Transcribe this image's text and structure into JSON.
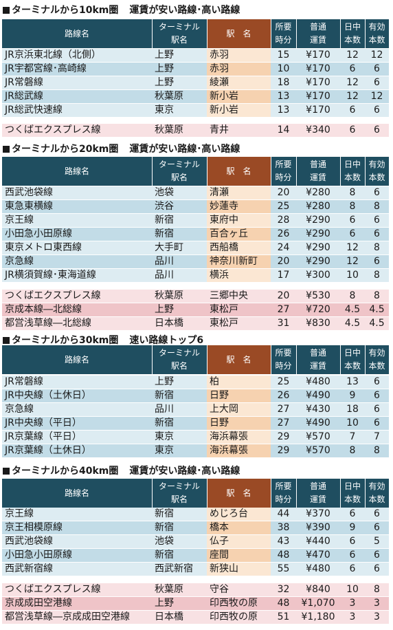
{
  "header_labels": {
    "route": "路線名",
    "terminal_line1": "ターミナル",
    "terminal_line2": "駅名",
    "station": "駅　名",
    "minutes_line1": "所要",
    "minutes_line2": "時分",
    "fare_line1": "普通",
    "fare_line2": "運賃",
    "daytime_line1": "日中",
    "daytime_line2": "本数",
    "effective_line1": "有効",
    "effective_line2": "本数"
  },
  "colors": {
    "header_bg": "#1f4e60",
    "header_station_bg": "#9a4a25",
    "cheap_row_light": "#ddecf2",
    "cheap_row_dark": "#c2dce7",
    "cheap_station_light": "#fbe7d3",
    "cheap_station_dark": "#f6d2b0",
    "expensive_row_light": "#f8e1e3",
    "expensive_row_dark": "#efc4c8"
  },
  "sections": [
    {
      "title": "ターミナルから10km圏",
      "subtitle": "運賃が安い路線･高い路線",
      "groups": [
        {
          "kind": "cheap",
          "rows": [
            {
              "route": "JR京浜東北線（北側）",
              "terminal": "上野",
              "station": "赤羽",
              "minutes": "15",
              "fare": "¥170",
              "daytime": "12",
              "effective": "12"
            },
            {
              "route": "JR宇都宮線･高崎線",
              "terminal": "上野",
              "station": "赤羽",
              "minutes": "10",
              "fare": "¥170",
              "daytime": "6",
              "effective": "6"
            },
            {
              "route": "JR常磐線",
              "terminal": "上野",
              "station": "綾瀬",
              "minutes": "18",
              "fare": "¥170",
              "daytime": "12",
              "effective": "6"
            },
            {
              "route": "JR総武線",
              "terminal": "秋葉原",
              "station": "新小岩",
              "minutes": "13",
              "fare": "¥170",
              "daytime": "12",
              "effective": "12"
            },
            {
              "route": "JR総武快速線",
              "terminal": "東京",
              "station": "新小岩",
              "minutes": "13",
              "fare": "¥170",
              "daytime": "6",
              "effective": "6"
            }
          ]
        },
        {
          "kind": "expensive",
          "rows": [
            {
              "route": "つくばエクスプレス線",
              "terminal": "秋葉原",
              "station": "青井",
              "minutes": "14",
              "fare": "¥340",
              "daytime": "6",
              "effective": "6"
            }
          ]
        }
      ]
    },
    {
      "title": "ターミナルから20km圏",
      "subtitle": "運賃が安い路線･高い路線",
      "groups": [
        {
          "kind": "cheap",
          "rows": [
            {
              "route": "西武池袋線",
              "terminal": "池袋",
              "station": "清瀬",
              "minutes": "20",
              "fare": "¥280",
              "daytime": "8",
              "effective": "6"
            },
            {
              "route": "東急東横線",
              "terminal": "渋谷",
              "station": "妙蓮寺",
              "minutes": "25",
              "fare": "¥280",
              "daytime": "8",
              "effective": "8"
            },
            {
              "route": "京王線",
              "terminal": "新宿",
              "station": "東府中",
              "minutes": "28",
              "fare": "¥290",
              "daytime": "6",
              "effective": "6"
            },
            {
              "route": "小田急小田原線",
              "terminal": "新宿",
              "station": "百合ヶ丘",
              "minutes": "26",
              "fare": "¥290",
              "daytime": "6",
              "effective": "6"
            },
            {
              "route": "東京メトロ東西線",
              "terminal": "大手町",
              "station": "西船橋",
              "minutes": "24",
              "fare": "¥290",
              "daytime": "12",
              "effective": "8"
            },
            {
              "route": "京急線",
              "terminal": "品川",
              "station": "神奈川新町",
              "minutes": "20",
              "fare": "¥290",
              "daytime": "12",
              "effective": "6"
            },
            {
              "route": "JR横須賀線･東海道線",
              "terminal": "品川",
              "station": "横浜",
              "minutes": "17",
              "fare": "¥300",
              "daytime": "10",
              "effective": "8"
            }
          ]
        },
        {
          "kind": "expensive",
          "rows": [
            {
              "route": "つくばエクスプレス線",
              "terminal": "秋葉原",
              "station": "三郷中央",
              "minutes": "20",
              "fare": "¥530",
              "daytime": "8",
              "effective": "8"
            },
            {
              "route": "京成本線―北総線",
              "terminal": "上野",
              "station": "東松戸",
              "minutes": "27",
              "fare": "¥720",
              "daytime": "4.5",
              "effective": "4.5"
            },
            {
              "route": "都営浅草線―北総線",
              "terminal": "日本橋",
              "station": "東松戸",
              "minutes": "31",
              "fare": "¥830",
              "daytime": "4.5",
              "effective": "4.5"
            }
          ]
        }
      ]
    },
    {
      "title": "ターミナルから30km圏",
      "subtitle": "速い路線トップ6",
      "groups": [
        {
          "kind": "cheap",
          "rows": [
            {
              "route": "JR常磐線",
              "terminal": "上野",
              "station": "柏",
              "minutes": "25",
              "fare": "¥480",
              "daytime": "13",
              "effective": "6"
            },
            {
              "route": "JR中央線（土休日）",
              "terminal": "新宿",
              "station": "日野",
              "minutes": "26",
              "fare": "¥490",
              "daytime": "9",
              "effective": "6"
            },
            {
              "route": "京急線",
              "terminal": "品川",
              "station": "上大岡",
              "minutes": "27",
              "fare": "¥430",
              "daytime": "18",
              "effective": "6"
            },
            {
              "route": "JR中央線（平日）",
              "terminal": "新宿",
              "station": "日野",
              "minutes": "27",
              "fare": "¥490",
              "daytime": "10",
              "effective": "6"
            },
            {
              "route": "JR京葉線（平日）",
              "terminal": "東京",
              "station": "海浜幕張",
              "minutes": "29",
              "fare": "¥570",
              "daytime": "7",
              "effective": "7"
            },
            {
              "route": "JR京葉線（土休日）",
              "terminal": "東京",
              "station": "海浜幕張",
              "minutes": "29",
              "fare": "¥570",
              "daytime": "8",
              "effective": "8"
            }
          ]
        }
      ]
    },
    {
      "title": "ターミナルから40km圏",
      "subtitle": "運賃が安い路線･高い路線",
      "groups": [
        {
          "kind": "cheap",
          "rows": [
            {
              "route": "京王線",
              "terminal": "新宿",
              "station": "めじろ台",
              "minutes": "44",
              "fare": "¥370",
              "daytime": "6",
              "effective": "6"
            },
            {
              "route": "京王相模原線",
              "terminal": "新宿",
              "station": "橋本",
              "minutes": "38",
              "fare": "¥390",
              "daytime": "9",
              "effective": "6"
            },
            {
              "route": "西武池袋線",
              "terminal": "池袋",
              "station": "仏子",
              "minutes": "43",
              "fare": "¥440",
              "daytime": "6",
              "effective": "5"
            },
            {
              "route": "小田急小田原線",
              "terminal": "新宿",
              "station": "座間",
              "minutes": "48",
              "fare": "¥470",
              "daytime": "6",
              "effective": "6"
            },
            {
              "route": "西武新宿線",
              "terminal": "西武新宿",
              "station": "新狭山",
              "minutes": "55",
              "fare": "¥480",
              "daytime": "6",
              "effective": "6"
            }
          ]
        },
        {
          "kind": "expensive",
          "rows": [
            {
              "route": "つくばエクスプレス線",
              "terminal": "秋葉原",
              "station": "守谷",
              "minutes": "32",
              "fare": "¥840",
              "daytime": "10",
              "effective": "8"
            },
            {
              "route": "京成成田空港線",
              "terminal": "上野",
              "station": "印西牧の原",
              "minutes": "48",
              "fare": "¥1,070",
              "daytime": "3",
              "effective": "3"
            },
            {
              "route": "都営浅草線―京成成田空港線",
              "terminal": "日本橋",
              "station": "印西牧の原",
              "minutes": "51",
              "fare": "¥1,180",
              "daytime": "3",
              "effective": "3"
            }
          ]
        }
      ]
    }
  ]
}
